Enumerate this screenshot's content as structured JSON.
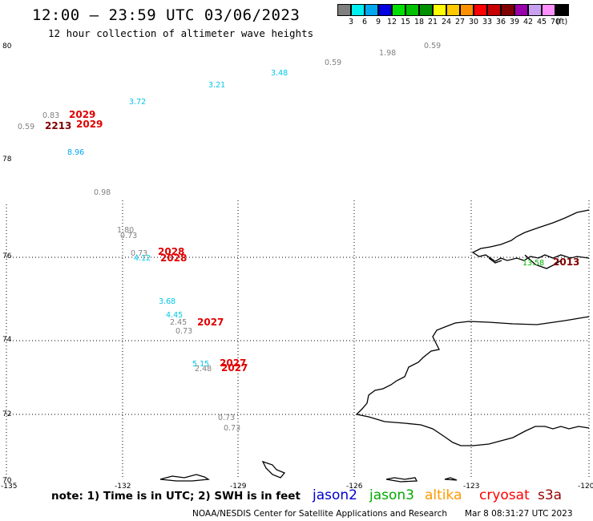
{
  "header": {
    "title": "12:00 – 23:59 UTC 03/06/2023",
    "subtitle": "12 hour collection of altimeter wave heights"
  },
  "color_scale": {
    "colors": [
      "#7f7f7f",
      "#00f0f0",
      "#00a8f0",
      "#0000e0",
      "#00e000",
      "#00c000",
      "#009000",
      "#ffff00",
      "#ffc800",
      "#ff9000",
      "#ff0000",
      "#c80000",
      "#800000",
      "#9900aa",
      "#c8a0f0",
      "#ff90ff",
      "#000000"
    ],
    "labels": [
      "3",
      "6",
      "9",
      "12",
      "15",
      "18",
      "21",
      "24",
      "27",
      "30",
      "33",
      "36",
      "39",
      "42",
      "45",
      "70",
      "(ft)"
    ]
  },
  "axes": {
    "lat_labels": [
      "80",
      "78",
      "76",
      "74",
      "72",
      "70"
    ],
    "lon_labels": [
      "-135",
      "-132",
      "-129",
      "-126",
      "-123",
      "-120"
    ]
  },
  "observations": [
    {
      "text": "0.59",
      "color": "#808080"
    },
    {
      "text": "1.98",
      "color": "#808080"
    },
    {
      "text": "0.59",
      "color": "#808080"
    },
    {
      "text": "3.48",
      "color": "#00c8e6"
    },
    {
      "text": "3.21",
      "color": "#00c8e6"
    },
    {
      "text": "3.72",
      "color": "#00c8e6"
    },
    {
      "text": "0.83",
      "color": "#808080"
    },
    {
      "text": "2029",
      "color": "#e00000"
    },
    {
      "text": "0.59",
      "color": "#808080"
    },
    {
      "text": "2213",
      "color": "#800000"
    },
    {
      "text": "2029",
      "color": "#e00000"
    },
    {
      "text": "8.96",
      "color": "#00a8f0"
    },
    {
      "text": "0.98",
      "color": "#808080"
    },
    {
      "text": "1.80",
      "color": "#808080"
    },
    {
      "text": "0.73",
      "color": "#808080"
    },
    {
      "text": "0.73",
      "color": "#808080"
    },
    {
      "text": "2028",
      "color": "#e00000"
    },
    {
      "text": "4.12",
      "color": "#00c8e6"
    },
    {
      "text": "2028",
      "color": "#e00000"
    },
    {
      "text": "13.58",
      "color": "#00b000"
    },
    {
      "text": "2013",
      "color": "#800000"
    },
    {
      "text": "3.68",
      "color": "#00c8e6"
    },
    {
      "text": "4.45",
      "color": "#00c8e6"
    },
    {
      "text": "2.45",
      "color": "#808080"
    },
    {
      "text": "2027",
      "color": "#e00000"
    },
    {
      "text": "0.73",
      "color": "#808080"
    },
    {
      "text": "5.15",
      "color": "#00c8e6"
    },
    {
      "text": "2027",
      "color": "#e00000"
    },
    {
      "text": "2.48",
      "color": "#808080"
    },
    {
      "text": "2027",
      "color": "#e00000"
    },
    {
      "text": "0.73",
      "color": "#808080"
    },
    {
      "text": "0.73",
      "color": "#808080"
    }
  ],
  "footer": {
    "note": "note:  1) Time is in UTC;  2) SWH is in feet",
    "satellites": [
      {
        "name": "jason2",
        "color": "#0000cc"
      },
      {
        "name": "jason3",
        "color": "#00aa00"
      },
      {
        "name": "altika",
        "color": "#ff9900"
      },
      {
        "name": "cryosat",
        "color": "#ff0000"
      },
      {
        "name": "s3a",
        "color": "#990000"
      }
    ],
    "credit": "NOAA/NESDIS Center for Satellite Applications and Research",
    "timestamp": "Mar  8 08:31:27 UTC 2023"
  }
}
